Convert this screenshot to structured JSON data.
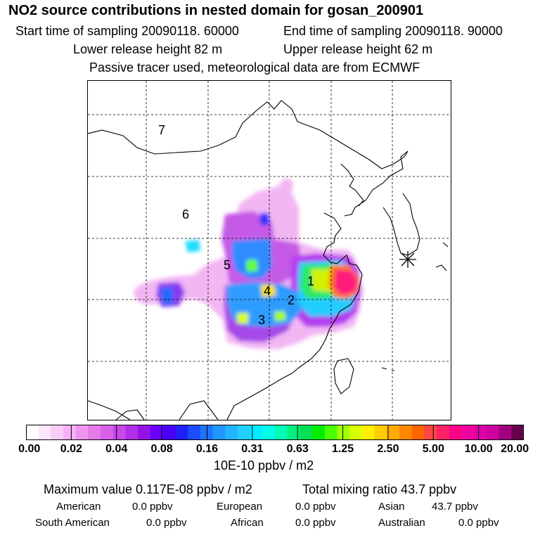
{
  "title": "NO2 source contributions in nested domain for gosan_200901",
  "start_time": "Start time of sampling 20090118. 60000",
  "end_time": "End time of sampling 20090118. 90000",
  "lower_release": "Lower release height   82 m",
  "upper_release": "Upper release height   62 m",
  "tracer_info": "Passive tracer used, meteorological data are from ECMWF",
  "map": {
    "region_labels": [
      "1",
      "2",
      "3",
      "4",
      "5",
      "6",
      "7"
    ],
    "receptor_icon": "asterisk-icon",
    "grid": "dashed"
  },
  "colorbar": {
    "colors": [
      "#ffffff",
      "#fde6fd",
      "#f9ccf9",
      "#f4b2f4",
      "#ee96ee",
      "#e57ae8",
      "#d860e6",
      "#c847e8",
      "#b02ee8",
      "#9412e6",
      "#6a00ff",
      "#4a00ff",
      "#2020ff",
      "#1a4dff",
      "#1f73ff",
      "#2196ff",
      "#22b4ff",
      "#22d0ff",
      "#00ecff",
      "#00ffe6",
      "#00ffb4",
      "#00ee80",
      "#00e050",
      "#00ee00",
      "#4cff00",
      "#a0ff00",
      "#d8ff00",
      "#ffee00",
      "#ffcc00",
      "#ffaa00",
      "#ff8800",
      "#ff6600",
      "#ff4444",
      "#ff2266",
      "#ff0088",
      "#f0009c",
      "#e000a8",
      "#cc00a0",
      "#a00080",
      "#66004c"
    ],
    "ticks": [
      "0.00",
      "0.02",
      "0.04",
      "0.08",
      "0.16",
      "0.31",
      "0.63",
      "1.25",
      "2.50",
      "5.00",
      "10.00",
      "20.00"
    ],
    "unit": "10E-10 ppbv / m2"
  },
  "summary": {
    "max_value": "Maximum value  0.117E-08 ppbv / m2",
    "total": "Total mixing ratio       43.7 ppbv",
    "american_label": "American",
    "american_value": "0.0 ppbv",
    "european_label": "European",
    "european_value": "0.0 ppbv",
    "asian_label": "Asian",
    "asian_value": "43.7 ppbv",
    "south_american_label": "South American",
    "south_american_value": "0.0 ppbv",
    "african_label": "African",
    "african_value": "0.0 ppbv",
    "australian_label": "Australian",
    "australian_value": "0.0 ppbv"
  }
}
